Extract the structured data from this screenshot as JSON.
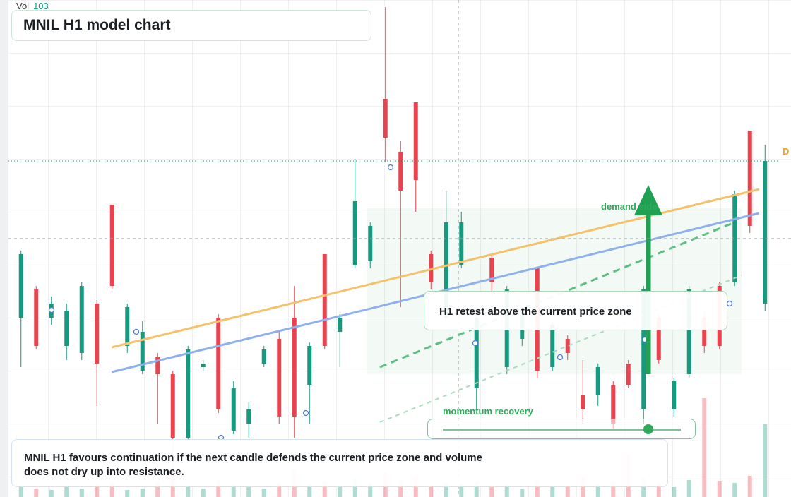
{
  "chart_data": {
    "type": "candlestick",
    "title": "MNIL H1 model chart",
    "volume_label": "Vol",
    "up_color": "#17997f",
    "down_color": "#e8434f",
    "series": {
      "open": [
        25.4,
        29.4,
        25.4,
        21.4,
        20.4,
        27.4,
        41.4,
        21.4,
        17.9,
        19.9,
        17.4,
        8.4,
        18.4,
        25.4,
        9.4,
        10.4,
        18.9,
        22.4,
        25.4,
        15.9,
        34.4,
        23.4,
        32.9,
        33.4,
        56.4,
        48.9,
        55.9,
        34.4,
        25.4,
        32.9,
        15.4,
        33.9,
        18.4,
        22.4,
        32.4,
        18.4,
        22.4,
        14.4,
        14.4,
        15.9,
        18.9,
        12.4,
        25.4,
        12.4,
        17.4,
        25.4,
        29.9,
        30.4,
        51.9,
        27.4
      ],
      "high": [
        34.9,
        29.9,
        28.4,
        27.4,
        30.4,
        27.9,
        41.4,
        27.4,
        24.9,
        20.4,
        17.9,
        21.4,
        19.4,
        25.9,
        16.4,
        13.4,
        21.4,
        23.4,
        29.9,
        21.9,
        34.4,
        25.9,
        47.9,
        38.9,
        69.4,
        50.4,
        55.9,
        34.9,
        43.4,
        40.4,
        26.4,
        34.4,
        29.9,
        26.9,
        32.4,
        24.9,
        22.9,
        19.4,
        18.9,
        16.4,
        19.4,
        29.9,
        25.9,
        16.9,
        29.9,
        26.4,
        30.4,
        43.4,
        51.9,
        49.9
      ],
      "low": [
        18.4,
        20.9,
        24.4,
        19.4,
        19.4,
        12.9,
        29.4,
        20.4,
        17.4,
        10.4,
        1.4,
        7.9,
        17.9,
        11.9,
        8.9,
        8.4,
        18.4,
        10.4,
        8.4,
        10.4,
        20.9,
        18.4,
        32.4,
        32.4,
        47.4,
        26.9,
        40.4,
        29.4,
        24.9,
        32.4,
        12.4,
        28.4,
        17.4,
        21.4,
        16.9,
        17.9,
        19.4,
        10.4,
        12.9,
        9.4,
        15.4,
        10.4,
        18.9,
        11.4,
        16.9,
        20.4,
        20.9,
        29.9,
        37.4,
        26.4
      ],
      "close": [
        34.4,
        21.4,
        27.4,
        26.4,
        29.9,
        18.9,
        29.9,
        26.9,
        23.4,
        17.4,
        8.4,
        20.9,
        18.9,
        12.4,
        15.4,
        12.4,
        20.9,
        11.4,
        11.4,
        21.4,
        21.4,
        25.4,
        41.9,
        38.4,
        50.9,
        43.4,
        44.9,
        30.4,
        38.9,
        38.9,
        25.4,
        30.4,
        29.4,
        26.4,
        17.9,
        24.4,
        20.4,
        12.4,
        18.4,
        10.4,
        15.9,
        29.4,
        19.4,
        16.4,
        29.4,
        21.4,
        21.4,
        42.9,
        38.4,
        47.6
      ]
    },
    "volume": [
      14,
      12,
      10,
      16,
      12,
      18,
      20,
      10,
      12,
      22,
      30,
      16,
      12,
      24,
      18,
      16,
      12,
      20,
      40,
      18,
      22,
      14,
      26,
      20,
      34,
      24,
      28,
      16,
      20,
      18,
      22,
      14,
      18,
      12,
      24,
      16,
      14,
      30,
      18,
      22,
      60,
      26,
      20,
      14,
      24,
      140,
      22,
      20,
      30,
      103
    ],
    "volume_lim": [
      0,
      150
    ],
    "ylim": [
      0,
      70.4
    ],
    "crosshair_price": 36.6,
    "annotations": {
      "zone": "demand side",
      "retest": "H1 retest above the current price zone",
      "momentum": "momentum recovery",
      "price_tag": "D"
    },
    "summary": "MNIL H1 favours continuation if the next candle defends the current price zone and volume does not dry up into resistance."
  }
}
